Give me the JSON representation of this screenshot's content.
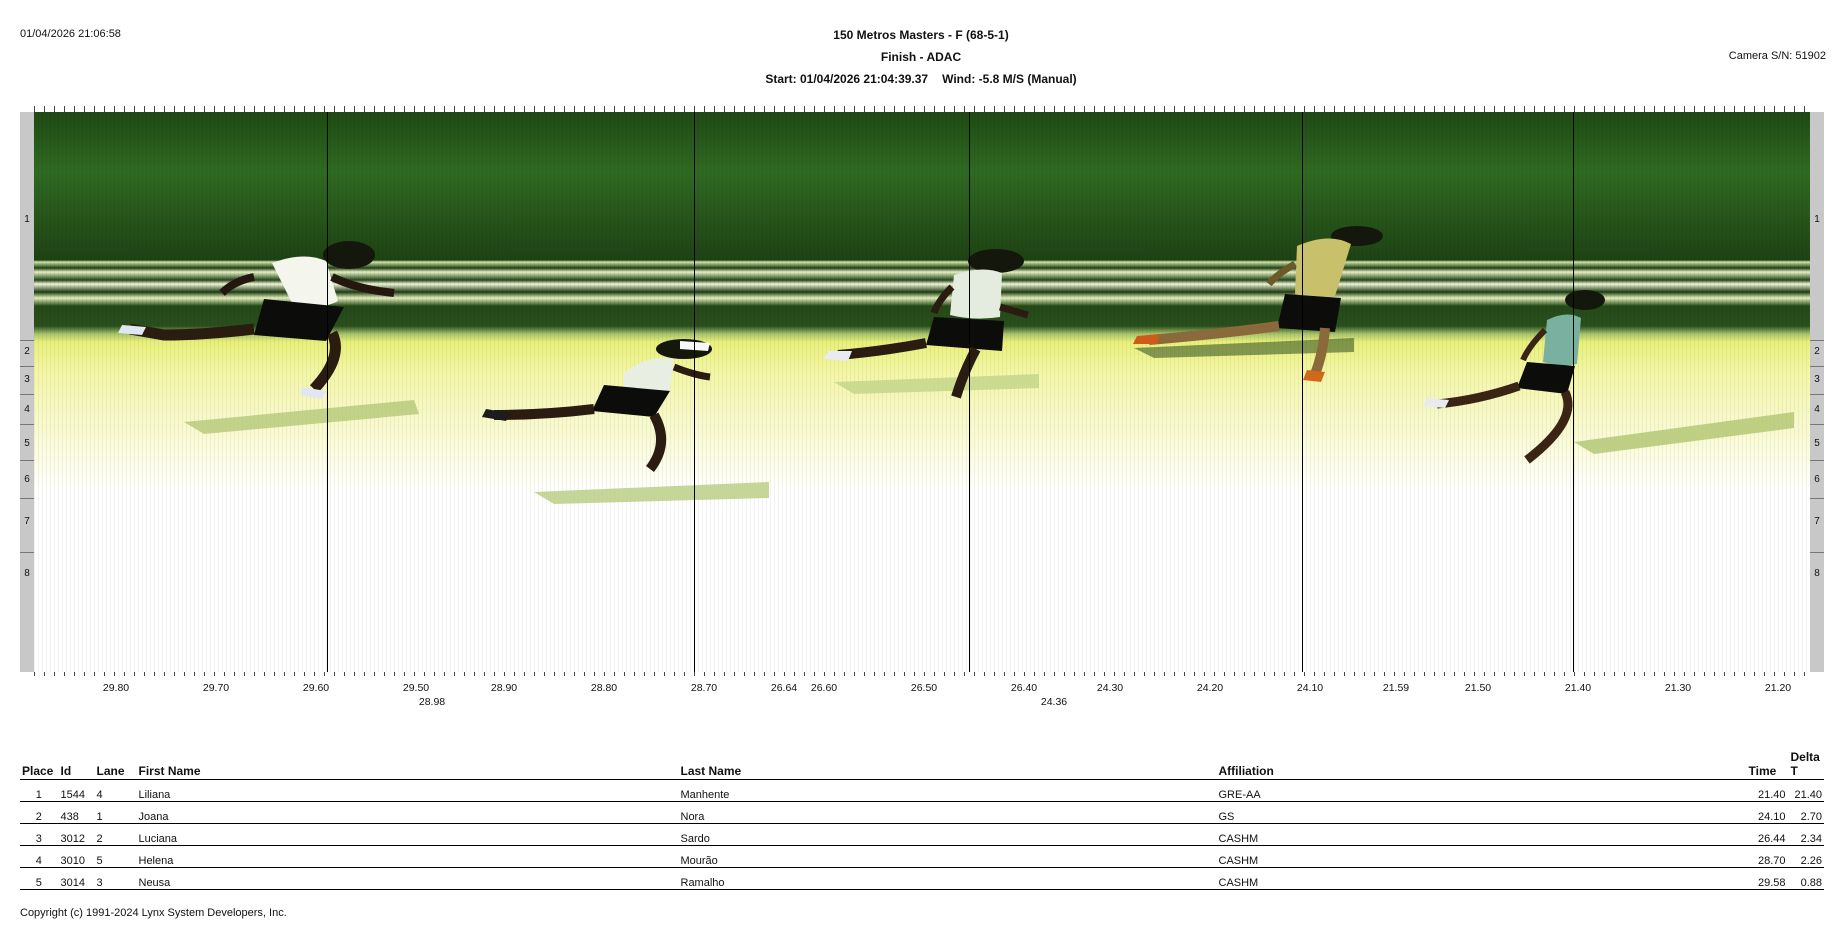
{
  "print_timestamp": "01/04/2026 21:06:58",
  "camera_serial": "Camera S/N: 51902",
  "header": {
    "event": "150 Metros Masters - F (68-5-1)",
    "location": "Finish - ADAC",
    "start": "Start: 01/04/2026 21:04:39.37",
    "wind": "Wind: -5.8 M/S (Manual)"
  },
  "lanes": [
    "1",
    "2",
    "3",
    "4",
    "5",
    "6",
    "7",
    "8"
  ],
  "time_axis": {
    "labels": [
      "29.80",
      "29.70",
      "29.60",
      "29.50",
      "28.90",
      "28.80",
      "28.70",
      "26.64",
      "26.60",
      "26.50",
      "26.40",
      "24.30",
      "24.20",
      "24.10",
      "21.59",
      "21.50",
      "21.40",
      "21.30",
      "21.20"
    ],
    "sub_labels": [
      "28.98",
      "24.36"
    ]
  },
  "table": {
    "columns": {
      "place": "Place",
      "id": "Id",
      "lane": "Lane",
      "first_name": "First Name",
      "last_name": "Last Name",
      "affiliation": "Affiliation",
      "time": "Time",
      "delta": "Delta T"
    },
    "rows": [
      {
        "place": "1",
        "id": "1544",
        "lane": "4",
        "first_name": "Liliana",
        "last_name": "Manhente",
        "affiliation": "GRE-AA",
        "time": "21.40",
        "delta": "21.40"
      },
      {
        "place": "2",
        "id": "438",
        "lane": "1",
        "first_name": "Joana",
        "last_name": "Nora",
        "affiliation": "GS",
        "time": "24.10",
        "delta": "2.70"
      },
      {
        "place": "3",
        "id": "3012",
        "lane": "2",
        "first_name": "Luciana",
        "last_name": "Sardo",
        "affiliation": "CASHM",
        "time": "26.44",
        "delta": "2.34"
      },
      {
        "place": "4",
        "id": "3010",
        "lane": "5",
        "first_name": "Helena",
        "last_name": "Mourão",
        "affiliation": "CASHM",
        "time": "28.70",
        "delta": "2.26"
      },
      {
        "place": "5",
        "id": "3014",
        "lane": "3",
        "first_name": "Neusa",
        "last_name": "Ramalho",
        "affiliation": "CASHM",
        "time": "29.58",
        "delta": "0.88"
      }
    ]
  },
  "copyright": "Copyright (c) 1991-2024 Lynx System Developers, Inc."
}
